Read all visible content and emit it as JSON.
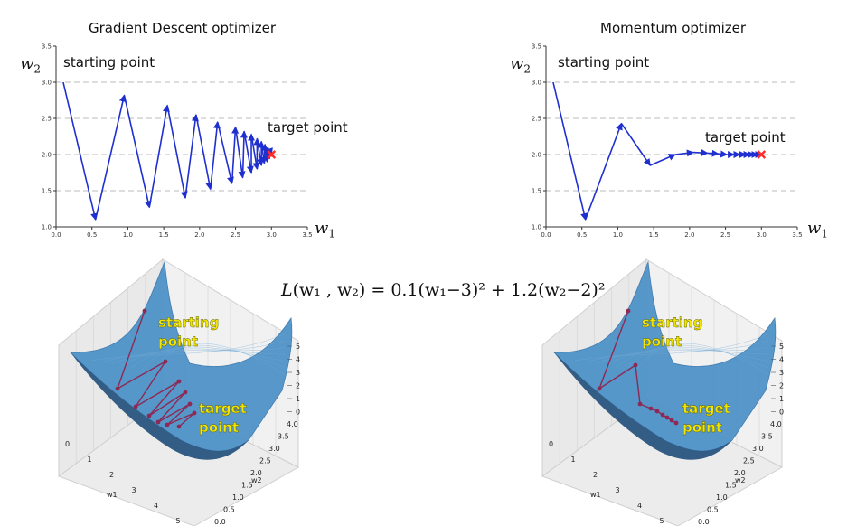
{
  "chart_data": [
    {
      "type": "line",
      "title": "Gradient Descent optimizer",
      "xlabel": "w1",
      "ylabel": "w2",
      "xlim": [
        0.0,
        3.5
      ],
      "ylim": [
        1.0,
        3.5
      ],
      "xticks": [
        "0.0",
        "0.5",
        "1.0",
        "1.5",
        "2.0",
        "2.5",
        "3.0",
        "3.5"
      ],
      "yticks": [
        "1.0",
        "1.5",
        "2.0",
        "2.5",
        "3.0",
        "3.5"
      ],
      "grid": "horizontal dashed",
      "series": [
        {
          "x": [
            0.1,
            0.55,
            0.95,
            1.3,
            1.55,
            1.8,
            1.95,
            2.15,
            2.25,
            2.45,
            2.5,
            2.6,
            2.62,
            2.72,
            2.72,
            2.8,
            2.8,
            2.86,
            2.86,
            2.9,
            2.91,
            2.94,
            2.95,
            2.97,
            2.98,
            3.0
          ],
          "y": [
            3.0,
            1.1,
            2.82,
            1.27,
            2.68,
            1.4,
            2.55,
            1.52,
            2.45,
            1.6,
            2.38,
            1.68,
            2.32,
            1.75,
            2.28,
            1.8,
            2.22,
            1.85,
            2.18,
            1.88,
            2.14,
            1.9,
            2.1,
            1.94,
            2.06,
            2.0
          ]
        }
      ],
      "annotations": [
        "starting point",
        "target point"
      ],
      "target": [
        3.0,
        2.0
      ]
    },
    {
      "type": "line",
      "title": "Momentum optimizer",
      "xlabel": "w1",
      "ylabel": "w2",
      "xlim": [
        0.0,
        3.5
      ],
      "ylim": [
        1.0,
        3.5
      ],
      "xticks": [
        "0.0",
        "0.5",
        "1.0",
        "1.5",
        "2.0",
        "2.5",
        "3.0",
        "3.5"
      ],
      "yticks": [
        "1.0",
        "1.5",
        "2.0",
        "2.5",
        "3.0",
        "3.5"
      ],
      "grid": "horizontal dashed",
      "series": [
        {
          "x": [
            0.1,
            0.55,
            1.05,
            1.45,
            1.8,
            2.05,
            2.25,
            2.4,
            2.52,
            2.62,
            2.7,
            2.78,
            2.84,
            2.9,
            2.95,
            3.0
          ],
          "y": [
            3.0,
            1.1,
            2.43,
            1.85,
            2.0,
            2.03,
            2.02,
            2.01,
            2.0,
            2.0,
            2.0,
            2.0,
            2.0,
            2.0,
            2.0,
            2.0
          ]
        }
      ],
      "annotations": [
        "starting point",
        "target point"
      ],
      "target": [
        3.0,
        2.0
      ]
    }
  ],
  "gd": {
    "title": "Gradient Descent optimizer",
    "ylabel": "w",
    "ylabel_sub": "2",
    "xlabel": "w",
    "xlabel_sub": "1",
    "start_label": "starting point",
    "target_label": "target point"
  },
  "mom": {
    "title": "Momentum optimizer",
    "ylabel": "w",
    "ylabel_sub": "2",
    "xlabel": "w",
    "xlabel_sub": "1",
    "start_label": "starting point",
    "target_label": "target point"
  },
  "formula": {
    "L": "L",
    "args": "(w₁ , w₂)",
    "eq": " = 0.1(w₁−3)² + 1.2(w₂−2)²"
  },
  "surface3d": {
    "left": {
      "start_line1": "starting",
      "start_line2": "point",
      "target_line1": "target",
      "target_line2": "point"
    },
    "right": {
      "start_line1": "starting",
      "start_line2": "point",
      "target_line1": "target",
      "target_line2": "point"
    },
    "w1_label": "w1",
    "w2_label": "w2",
    "z_ticks": [
      "5",
      "4",
      "3",
      "2",
      "1",
      "0"
    ],
    "w1_ticks": [
      "0",
      "1",
      "2",
      "3",
      "4",
      "5"
    ],
    "w2_ticks": [
      "4.0",
      "3.5",
      "3.0",
      "2.5",
      "2.0",
      "1.5",
      "1.0",
      "0.5",
      "0.0"
    ],
    "colors": {
      "surface": "#4f93c8",
      "surface_dark": "#1f4e7a",
      "path": "#8c2a55",
      "label": "#f2e600"
    }
  },
  "colors": {
    "path": "#1f2fd0",
    "target": "#ff2a2a",
    "grid": "#bbbbbb"
  }
}
